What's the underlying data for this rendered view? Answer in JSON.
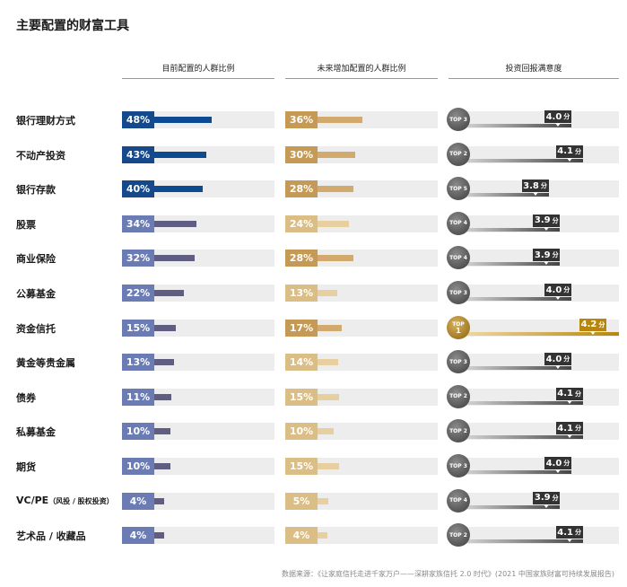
{
  "title": "主要配置的财富工具",
  "footer": "数据来源：《让家庭信托走进千家万户——深耕家族信托 2.0 时代》(2021 中国家族财富可持续发展报告)",
  "colors": {
    "blue_dark": "#0d4a94",
    "blue_badge": "#15498c",
    "slate": "#5f5d82",
    "slate_badge": "#6b7cb4",
    "tan": "#d2aa6d",
    "tan_light": "#e8cf9f",
    "tan_badge": "#c59a56",
    "tan_badge_light": "#dbbd86",
    "gray_dark": "#444444",
    "gold": "#b8860b"
  },
  "chart_data": {
    "type": "bar",
    "columns": [
      "目前配置的人群比例",
      "未来增加配置的人群比例",
      "投资回报满意度"
    ],
    "categories": [
      "银行理财方式",
      "不动产投资",
      "银行存款",
      "股票",
      "商业保险",
      "公募基金",
      "资金信托",
      "黄金等贵金属",
      "债券",
      "私募基金",
      "期货",
      "VC/PE",
      "艺术品 / 收藏品"
    ],
    "category_notes": [
      "",
      "",
      "",
      "",
      "",
      "",
      "",
      "",
      "",
      "",
      "",
      "（风投 / 股权投资）",
      ""
    ],
    "series": [
      {
        "name": "目前配置的人群比例",
        "values": [
          48,
          43,
          40,
          34,
          32,
          22,
          15,
          13,
          11,
          10,
          10,
          4,
          4
        ],
        "labels": [
          "48%",
          "43%",
          "40%",
          "34%",
          "32%",
          "22%",
          "15%",
          "13%",
          "11%",
          "10%",
          "10%",
          "4%",
          "4%"
        ]
      },
      {
        "name": "未来增加配置的人群比例",
        "values": [
          36,
          30,
          28,
          24,
          28,
          13,
          17,
          14,
          15,
          10,
          15,
          5,
          4
        ],
        "labels": [
          "36%",
          "30%",
          "28%",
          "24%",
          "28%",
          "13%",
          "17%",
          "14%",
          "15%",
          "10%",
          "15%",
          "5%",
          "4%"
        ]
      },
      {
        "name": "投资回报满意度",
        "values": [
          4.0,
          4.1,
          3.8,
          3.9,
          3.9,
          4.0,
          4.2,
          4.0,
          4.1,
          4.1,
          4.0,
          3.9,
          4.1
        ],
        "labels": [
          "4.0",
          "4.1",
          "3.8",
          "3.9",
          "3.9",
          "4.0",
          "4.2",
          "4.0",
          "4.1",
          "4.1",
          "4.0",
          "3.9",
          "4.1"
        ],
        "unit": "分",
        "ranks": [
          "TOP 3",
          "TOP 2",
          "TOP 5",
          "TOP 4",
          "TOP 4",
          "TOP 3",
          "TOP 1",
          "TOP 3",
          "TOP 2",
          "TOP 2",
          "TOP 3",
          "TOP 4",
          "TOP 2"
        ]
      }
    ],
    "highlight": [
      0,
      1,
      2
    ],
    "highlight_top": 6
  }
}
